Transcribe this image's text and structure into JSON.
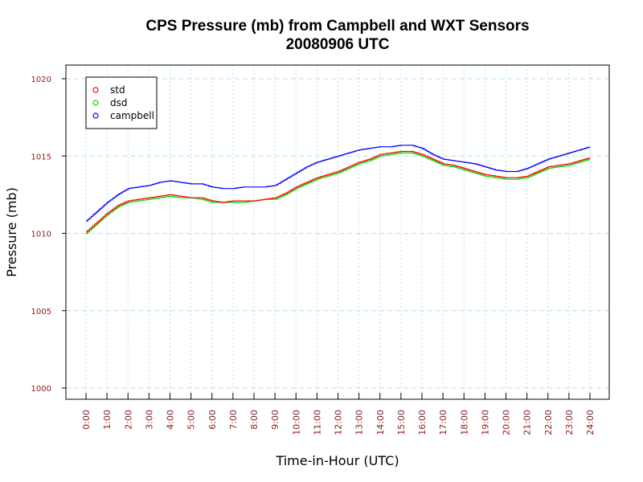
{
  "chart_data": {
    "type": "line",
    "title": "CPS Pressure (mb) from Campbell and WXT Sensors",
    "subtitle": "20080906  UTC",
    "xlabel": "Time-in-Hour (UTC)",
    "ylabel": "Pressure (mb)",
    "xlim": [
      0,
      24
    ],
    "ylim": [
      1000,
      1020.5
    ],
    "x_tick_labels": [
      "0:00",
      "1:00",
      "2:00",
      "3:00",
      "4:00",
      "5:00",
      "6:00",
      "7:00",
      "8:00",
      "9:00",
      "10:00",
      "11:00",
      "12:00",
      "13:00",
      "14:00",
      "15:00",
      "16:00",
      "17:00",
      "18:00",
      "19:00",
      "20:00",
      "21:00",
      "22:00",
      "23:00",
      "24:00"
    ],
    "y_tick_labels": [
      "1000",
      "1005",
      "1010",
      "1015",
      "1020"
    ],
    "y_ticks": [
      1000,
      1005,
      1010,
      1015,
      1020
    ],
    "grid": true,
    "legend_position": "top-left",
    "x": [
      0,
      0.5,
      1,
      1.5,
      2,
      2.5,
      3,
      3.5,
      4,
      4.5,
      5,
      5.5,
      6,
      6.5,
      7,
      7.5,
      8,
      8.5,
      9,
      9.5,
      10,
      10.5,
      11,
      11.5,
      12,
      12.5,
      13,
      13.5,
      14,
      14.5,
      15,
      15.5,
      16,
      16.5,
      17,
      17.5,
      18,
      18.5,
      19,
      19.5,
      20,
      20.5,
      21,
      21.5,
      22,
      22.5,
      23,
      23.5,
      24
    ],
    "series": [
      {
        "name": "std",
        "color": "#ff0000",
        "values": [
          1010.1,
          1010.7,
          1011.3,
          1011.8,
          1012.1,
          1012.2,
          1012.3,
          1012.4,
          1012.5,
          1012.4,
          1012.3,
          1012.3,
          1012.1,
          1012.0,
          1012.1,
          1012.1,
          1012.1,
          1012.2,
          1012.3,
          1012.6,
          1013.0,
          1013.3,
          1013.6,
          1013.8,
          1014.0,
          1014.3,
          1014.6,
          1014.8,
          1015.1,
          1015.2,
          1015.3,
          1015.3,
          1015.1,
          1014.8,
          1014.5,
          1014.4,
          1014.2,
          1014.0,
          1013.8,
          1013.7,
          1013.6,
          1013.6,
          1013.7,
          1014.0,
          1014.3,
          1014.4,
          1014.5,
          1014.7,
          1014.9
        ]
      },
      {
        "name": "dsd",
        "color": "#00dd00",
        "values": [
          1010.0,
          1010.6,
          1011.2,
          1011.7,
          1012.0,
          1012.1,
          1012.2,
          1012.3,
          1012.4,
          1012.3,
          1012.3,
          1012.2,
          1012.0,
          1012.0,
          1012.0,
          1012.0,
          1012.1,
          1012.2,
          1012.2,
          1012.5,
          1012.9,
          1013.2,
          1013.5,
          1013.7,
          1013.9,
          1014.2,
          1014.5,
          1014.7,
          1015.0,
          1015.1,
          1015.2,
          1015.2,
          1015.0,
          1014.7,
          1014.4,
          1014.3,
          1014.1,
          1013.9,
          1013.7,
          1013.6,
          1013.5,
          1013.5,
          1013.6,
          1013.9,
          1014.2,
          1014.3,
          1014.4,
          1014.6,
          1014.8
        ]
      },
      {
        "name": "campbell",
        "color": "#0000ff",
        "values": [
          1010.8,
          1011.4,
          1012.0,
          1012.5,
          1012.9,
          1013.0,
          1013.1,
          1013.3,
          1013.4,
          1013.3,
          1013.2,
          1013.2,
          1013.0,
          1012.9,
          1012.9,
          1013.0,
          1013.0,
          1013.0,
          1013.1,
          1013.5,
          1013.9,
          1014.3,
          1014.6,
          1014.8,
          1015.0,
          1015.2,
          1015.4,
          1015.5,
          1015.6,
          1015.6,
          1015.7,
          1015.7,
          1015.5,
          1015.1,
          1014.8,
          1014.7,
          1014.6,
          1014.5,
          1014.3,
          1014.1,
          1014.0,
          1014.0,
          1014.2,
          1014.5,
          1014.8,
          1015.0,
          1015.2,
          1015.4,
          1015.6
        ]
      }
    ]
  }
}
